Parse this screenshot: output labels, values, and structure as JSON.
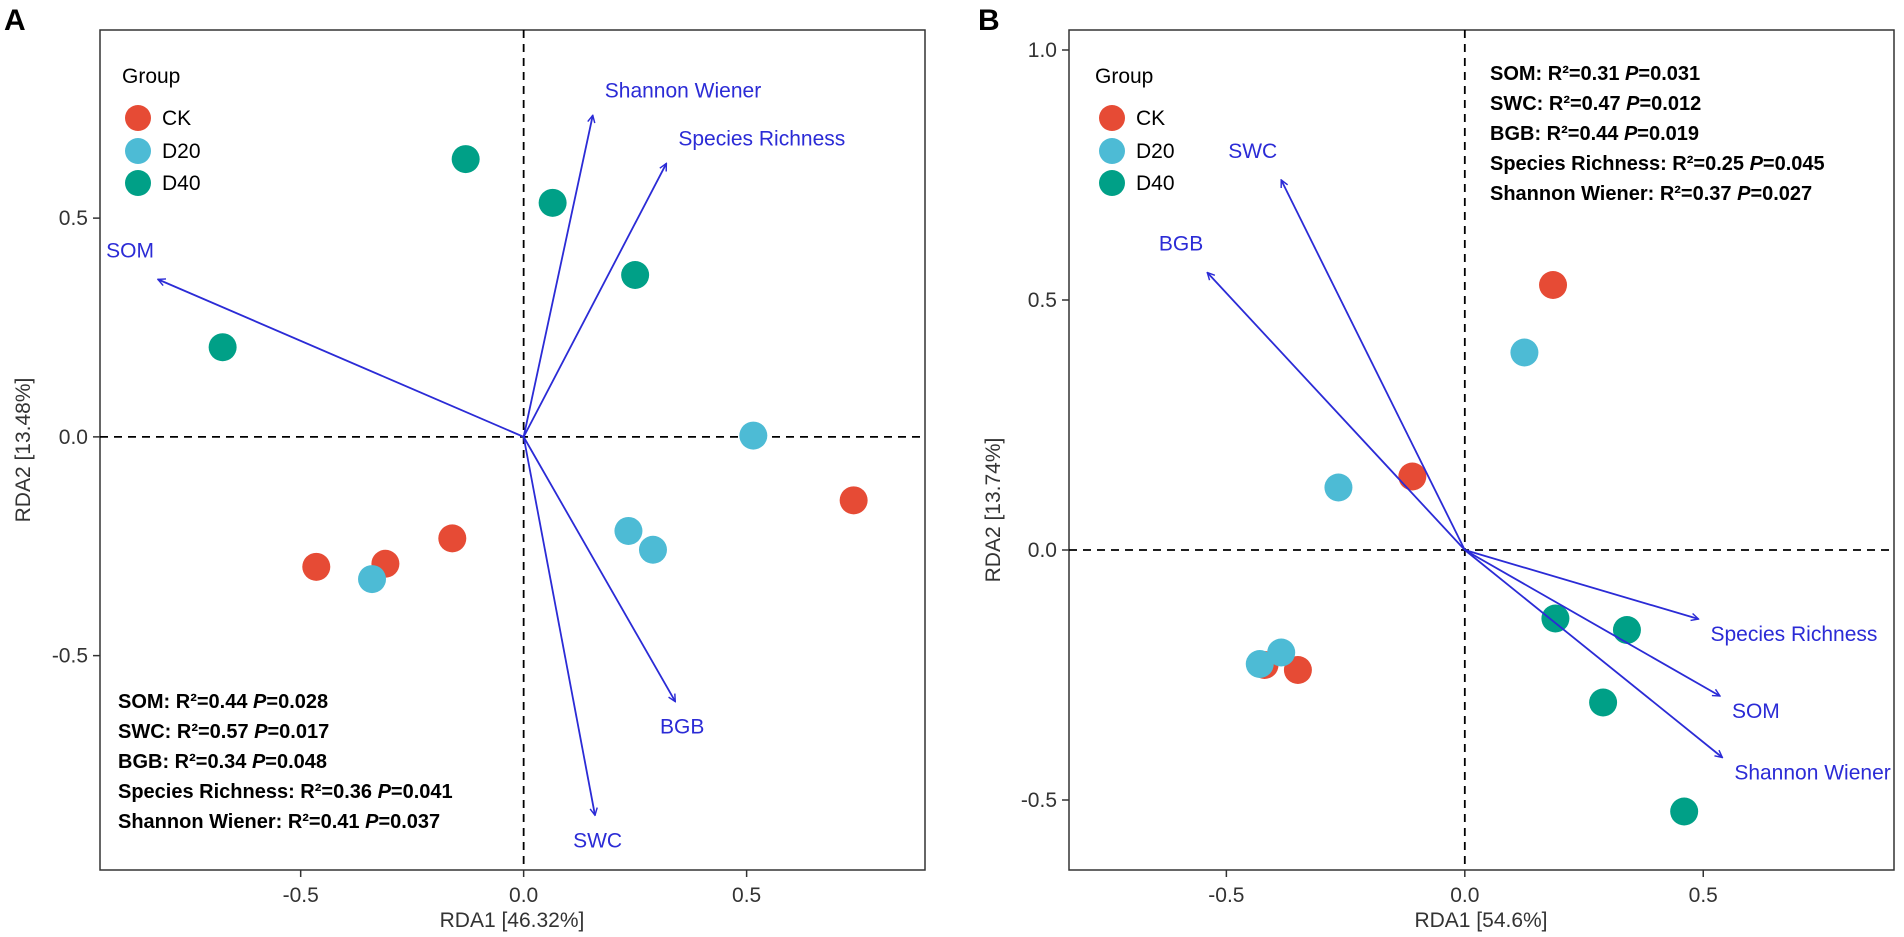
{
  "chart_data": [
    {
      "type": "scatter",
      "panel_label": "A",
      "xlabel": "RDA1 [46.32%]",
      "ylabel": "RDA2 [13.48%]",
      "xlim": [
        -0.95,
        0.9
      ],
      "ylim": [
        -0.99,
        0.93
      ],
      "xticks": [
        -0.5,
        0.0,
        0.5
      ],
      "xtick_labels": [
        "-0.5",
        "0.0",
        "0.5"
      ],
      "yticks": [
        -0.5,
        0.0,
        0.5
      ],
      "ytick_labels": [
        "-0.5",
        "0.0",
        "0.5"
      ],
      "legend": {
        "title": "Group",
        "entries": [
          {
            "name": "CK",
            "color": "#e64b35"
          },
          {
            "name": "D20",
            "color": "#4dbbd5"
          },
          {
            "name": "D40",
            "color": "#00a087"
          }
        ]
      },
      "points": [
        {
          "group": "D40",
          "x": -0.13,
          "y": 0.635
        },
        {
          "group": "D40",
          "x": 0.065,
          "y": 0.535
        },
        {
          "group": "D40",
          "x": 0.25,
          "y": 0.37
        },
        {
          "group": "D40",
          "x": -0.675,
          "y": 0.205
        },
        {
          "group": "D20",
          "x": 0.515,
          "y": 0.003
        },
        {
          "group": "CK",
          "x": 0.74,
          "y": -0.145
        },
        {
          "group": "D20",
          "x": 0.235,
          "y": -0.215
        },
        {
          "group": "D20",
          "x": 0.29,
          "y": -0.258
        },
        {
          "group": "CK",
          "x": -0.16,
          "y": -0.232
        },
        {
          "group": "CK",
          "x": -0.465,
          "y": -0.297
        },
        {
          "group": "CK",
          "x": -0.31,
          "y": -0.29
        },
        {
          "group": "D20",
          "x": -0.34,
          "y": -0.325
        }
      ],
      "arrows": [
        {
          "label": "Shannon Wiener",
          "x": 0.155,
          "y": 0.735,
          "label_anchor": "start"
        },
        {
          "label": "Species Richness",
          "x": 0.32,
          "y": 0.625,
          "label_anchor": "start"
        },
        {
          "label": "SOM",
          "x": -0.82,
          "y": 0.36,
          "label_anchor": "end"
        },
        {
          "label": "BGB",
          "x": 0.34,
          "y": -0.605,
          "label_anchor": "middle"
        },
        {
          "label": "SWC",
          "x": 0.16,
          "y": -0.865,
          "label_anchor": "middle"
        }
      ],
      "stats": [
        {
          "var": "SOM",
          "r2": "0.44",
          "p": "0.028"
        },
        {
          "var": "SWC",
          "r2": "0.57",
          "p": "0.017"
        },
        {
          "var": "BGB",
          "r2": "0.34",
          "p": "0.048"
        },
        {
          "var": "Species Richness",
          "r2": "0.36",
          "p": "0.041"
        },
        {
          "var": "Shannon Wiener",
          "r2": "0.41",
          "p": "0.037"
        }
      ]
    },
    {
      "type": "scatter",
      "panel_label": "B",
      "xlabel": "RDA1 [54.6%]",
      "ylabel": "RDA2 [13.74%]",
      "xlim": [
        -0.83,
        0.9
      ],
      "ylim": [
        -0.64,
        1.04
      ],
      "xticks": [
        -0.5,
        0.0,
        0.5
      ],
      "xtick_labels": [
        "-0.5",
        "0.0",
        "0.5"
      ],
      "yticks": [
        -0.5,
        0.0,
        0.5,
        1.0
      ],
      "ytick_labels": [
        "-0.5",
        "0.0",
        "0.5",
        "1.0"
      ],
      "legend": {
        "title": "Group",
        "entries": [
          {
            "name": "CK",
            "color": "#e64b35"
          },
          {
            "name": "D20",
            "color": "#4dbbd5"
          },
          {
            "name": "D40",
            "color": "#00a087"
          }
        ]
      },
      "points": [
        {
          "group": "CK",
          "x": 0.185,
          "y": 0.53
        },
        {
          "group": "D20",
          "x": 0.125,
          "y": 0.395
        },
        {
          "group": "CK",
          "x": -0.11,
          "y": 0.147
        },
        {
          "group": "D20",
          "x": -0.265,
          "y": 0.125
        },
        {
          "group": "D40",
          "x": 0.19,
          "y": -0.137
        },
        {
          "group": "D40",
          "x": 0.34,
          "y": -0.16
        },
        {
          "group": "CK",
          "x": -0.35,
          "y": -0.24
        },
        {
          "group": "CK",
          "x": -0.42,
          "y": -0.23
        },
        {
          "group": "D20",
          "x": -0.43,
          "y": -0.228
        },
        {
          "group": "D20",
          "x": -0.385,
          "y": -0.205
        },
        {
          "group": "D40",
          "x": 0.29,
          "y": -0.305
        },
        {
          "group": "D40",
          "x": 0.46,
          "y": -0.523
        }
      ],
      "arrows": [
        {
          "label": "SWC",
          "x": -0.385,
          "y": 0.74,
          "label_anchor": "end"
        },
        {
          "label": "BGB",
          "x": -0.54,
          "y": 0.555,
          "label_anchor": "end"
        },
        {
          "label": "Species Richness",
          "x": 0.49,
          "y": -0.138,
          "label_anchor": "start"
        },
        {
          "label": "SOM",
          "x": 0.535,
          "y": -0.292,
          "label_anchor": "start"
        },
        {
          "label": "Shannon Wiener",
          "x": 0.54,
          "y": -0.415,
          "label_anchor": "start"
        }
      ],
      "stats": [
        {
          "var": "SOM",
          "r2": "0.31",
          "p": "0.031"
        },
        {
          "var": "SWC",
          "r2": "0.47",
          "p": "0.012"
        },
        {
          "var": "BGB",
          "r2": "0.44",
          "p": "0.019"
        },
        {
          "var": "Species Richness",
          "r2": "0.25",
          "p": "0.045"
        },
        {
          "var": "Shannon Wiener",
          "r2": "0.37",
          "p": "0.027"
        }
      ]
    }
  ]
}
